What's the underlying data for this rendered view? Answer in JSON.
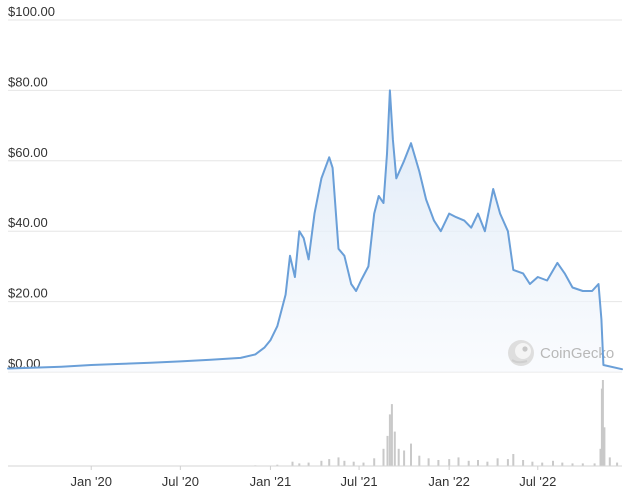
{
  "chart_data": {
    "type": "area",
    "y_unit_prefix": "$",
    "ylim": [
      0,
      100
    ],
    "y_ticks": [
      "$100.00",
      "$80.00",
      "$60.00",
      "$40.00",
      "$20.00",
      "$0.00"
    ],
    "y_tick_values": [
      100,
      80,
      60,
      40,
      20,
      0
    ],
    "x_ticks": [
      "Jan '20",
      "Jul '20",
      "Jan '21",
      "Jul '21",
      "Jan '22",
      "Jul '22"
    ],
    "x_tick_dates": [
      "2020-01-01",
      "2020-07-01",
      "2021-01-01",
      "2021-07-01",
      "2022-01-01",
      "2022-07-01"
    ],
    "xlim": [
      "2019-07-15",
      "2022-12-20"
    ],
    "grid": true,
    "series": [
      {
        "color": "#6a9fd8",
        "points": [
          [
            "2019-07-15",
            1.0
          ],
          [
            "2019-09-01",
            1.2
          ],
          [
            "2019-11-01",
            1.5
          ],
          [
            "2020-01-01",
            2.0
          ],
          [
            "2020-03-01",
            2.3
          ],
          [
            "2020-05-01",
            2.6
          ],
          [
            "2020-07-01",
            3.0
          ],
          [
            "2020-09-01",
            3.5
          ],
          [
            "2020-11-01",
            4.0
          ],
          [
            "2020-12-01",
            5.0
          ],
          [
            "2020-12-20",
            7.0
          ],
          [
            "2021-01-01",
            9.0
          ],
          [
            "2021-01-15",
            13.0
          ],
          [
            "2021-02-01",
            22.0
          ],
          [
            "2021-02-10",
            33.0
          ],
          [
            "2021-02-20",
            27.0
          ],
          [
            "2021-03-01",
            40.0
          ],
          [
            "2021-03-10",
            38.0
          ],
          [
            "2021-03-20",
            32.0
          ],
          [
            "2021-04-01",
            45.0
          ],
          [
            "2021-04-15",
            55.0
          ],
          [
            "2021-05-01",
            61.0
          ],
          [
            "2021-05-08",
            58.0
          ],
          [
            "2021-05-20",
            35.0
          ],
          [
            "2021-06-01",
            33.0
          ],
          [
            "2021-06-15",
            25.0
          ],
          [
            "2021-06-25",
            23.0
          ],
          [
            "2021-07-05",
            26.0
          ],
          [
            "2021-07-20",
            30.0
          ],
          [
            "2021-08-01",
            45.0
          ],
          [
            "2021-08-10",
            50.0
          ],
          [
            "2021-08-20",
            48.0
          ],
          [
            "2021-08-27",
            62.0
          ],
          [
            "2021-09-02",
            80.0
          ],
          [
            "2021-09-08",
            66.0
          ],
          [
            "2021-09-15",
            55.0
          ],
          [
            "2021-10-01",
            60.0
          ],
          [
            "2021-10-15",
            65.0
          ],
          [
            "2021-11-01",
            57.0
          ],
          [
            "2021-11-15",
            49.0
          ],
          [
            "2021-12-01",
            43.0
          ],
          [
            "2021-12-15",
            40.0
          ],
          [
            "2022-01-01",
            45.0
          ],
          [
            "2022-01-15",
            44.0
          ],
          [
            "2022-02-01",
            43.0
          ],
          [
            "2022-02-15",
            41.0
          ],
          [
            "2022-03-01",
            45.0
          ],
          [
            "2022-03-15",
            40.0
          ],
          [
            "2022-04-01",
            52.0
          ],
          [
            "2022-04-15",
            45.0
          ],
          [
            "2022-05-01",
            40.0
          ],
          [
            "2022-05-12",
            29.0
          ],
          [
            "2022-06-01",
            28.0
          ],
          [
            "2022-06-15",
            25.0
          ],
          [
            "2022-07-01",
            27.0
          ],
          [
            "2022-07-20",
            26.0
          ],
          [
            "2022-08-10",
            31.0
          ],
          [
            "2022-08-25",
            28.0
          ],
          [
            "2022-09-10",
            24.0
          ],
          [
            "2022-10-01",
            23.0
          ],
          [
            "2022-10-20",
            23.0
          ],
          [
            "2022-11-02",
            25.0
          ],
          [
            "2022-11-08",
            15.0
          ],
          [
            "2022-11-12",
            2.0
          ],
          [
            "2022-12-20",
            0.8
          ]
        ]
      }
    ],
    "volume": {
      "color": "#c9c9c9",
      "bars": [
        [
          "2019-08-01",
          0.3
        ],
        [
          "2019-10-01",
          0.3
        ],
        [
          "2019-12-01",
          0.3
        ],
        [
          "2020-02-01",
          0.3
        ],
        [
          "2020-04-01",
          0.3
        ],
        [
          "2020-06-01",
          0.3
        ],
        [
          "2020-08-01",
          0.3
        ],
        [
          "2020-10-01",
          0.5
        ],
        [
          "2020-12-01",
          0.8
        ],
        [
          "2021-01-15",
          1.5
        ],
        [
          "2021-02-15",
          5.0
        ],
        [
          "2021-03-01",
          3.0
        ],
        [
          "2021-03-20",
          4.0
        ],
        [
          "2021-04-15",
          6.0
        ],
        [
          "2021-05-01",
          8.0
        ],
        [
          "2021-05-20",
          10.0
        ],
        [
          "2021-06-01",
          6.0
        ],
        [
          "2021-06-20",
          5.0
        ],
        [
          "2021-07-10",
          4.0
        ],
        [
          "2021-08-01",
          9.0
        ],
        [
          "2021-08-20",
          20.0
        ],
        [
          "2021-08-28",
          35.0
        ],
        [
          "2021-09-02",
          60.0
        ],
        [
          "2021-09-06",
          72.0
        ],
        [
          "2021-09-12",
          40.0
        ],
        [
          "2021-09-20",
          20.0
        ],
        [
          "2021-10-01",
          18.0
        ],
        [
          "2021-10-15",
          26.0
        ],
        [
          "2021-11-01",
          12.0
        ],
        [
          "2021-11-20",
          9.0
        ],
        [
          "2021-12-10",
          7.0
        ],
        [
          "2022-01-01",
          8.0
        ],
        [
          "2022-01-20",
          10.0
        ],
        [
          "2022-02-10",
          6.0
        ],
        [
          "2022-03-01",
          7.0
        ],
        [
          "2022-03-20",
          5.0
        ],
        [
          "2022-04-10",
          9.0
        ],
        [
          "2022-05-01",
          8.0
        ],
        [
          "2022-05-12",
          14.0
        ],
        [
          "2022-06-01",
          7.0
        ],
        [
          "2022-06-20",
          5.0
        ],
        [
          "2022-07-10",
          4.0
        ],
        [
          "2022-08-01",
          6.0
        ],
        [
          "2022-08-20",
          4.0
        ],
        [
          "2022-09-10",
          3.0
        ],
        [
          "2022-10-01",
          3.0
        ],
        [
          "2022-10-25",
          3.0
        ],
        [
          "2022-11-06",
          20.0
        ],
        [
          "2022-11-09",
          90.0
        ],
        [
          "2022-11-11",
          100.0
        ],
        [
          "2022-11-14",
          45.0
        ],
        [
          "2022-11-25",
          10.0
        ],
        [
          "2022-12-10",
          4.0
        ]
      ]
    }
  },
  "watermark": {
    "text": "CoinGecko",
    "icon": "gecko-logo-icon"
  },
  "colors": {
    "line": "#6a9fd8",
    "area_top": "#d8e6f6",
    "area_bottom": "#f6f9fd",
    "grid": "#e6e6e6",
    "volume": "#c9c9c9"
  }
}
